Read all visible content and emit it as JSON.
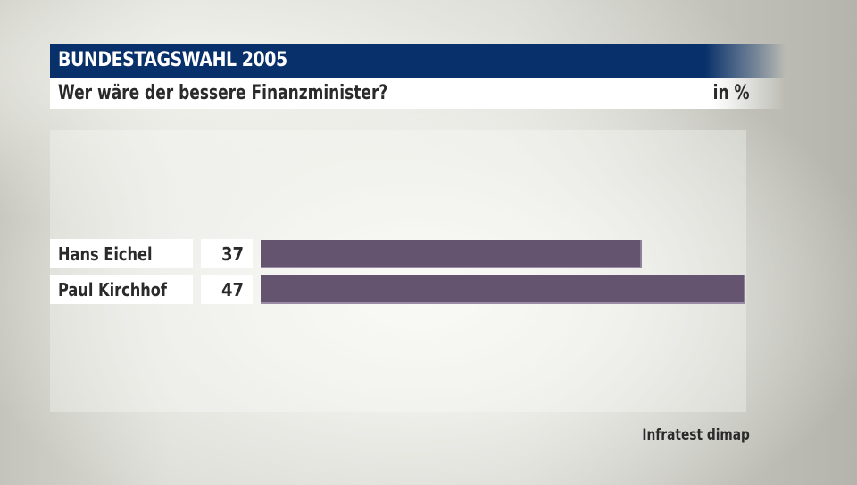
{
  "header": {
    "title": "BUNDESTAGSWAHL 2005",
    "subtitle": "Wer wäre der bessere Finanzminister?",
    "unit": "in %"
  },
  "rows": [
    {
      "label": "Hans Eichel",
      "value": "37"
    },
    {
      "label": "Paul Kirchhof",
      "value": "47"
    }
  ],
  "footer": {
    "source": "Infratest dimap"
  },
  "colors": {
    "title_bar": "#08306a",
    "bar": "#65546f",
    "text": "#2a2a2a"
  },
  "chart_data": {
    "type": "bar",
    "orientation": "horizontal",
    "title": "BUNDESTAGSWAHL 2005",
    "subtitle": "Wer wäre der bessere Finanzminister?",
    "unit": "in %",
    "categories": [
      "Hans Eichel",
      "Paul Kirchhof"
    ],
    "values": [
      37,
      47
    ],
    "xlabel": "",
    "ylabel": "",
    "grid": false,
    "legend": null,
    "source": "Infratest dimap"
  }
}
